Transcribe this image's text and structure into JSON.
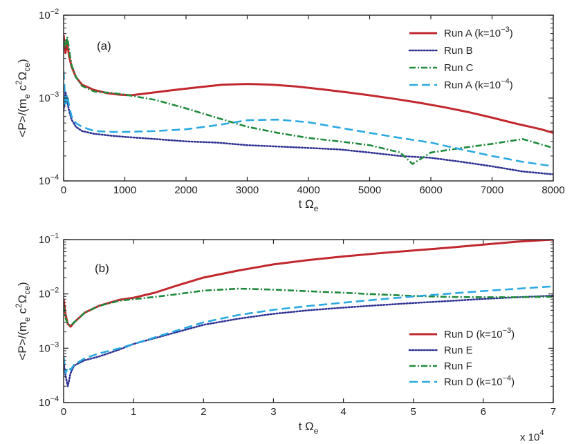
{
  "colors": {
    "red": "#c1272d",
    "navy": "#2e3192",
    "green": "#1e8a3a",
    "cyan": "#2aa9e0",
    "axis": "#231f20"
  },
  "chart_data": [
    {
      "type": "line",
      "panel_label": "(a)",
      "ylabel": "<P>/(m_e c^2 Ω_ce)",
      "xlabel": "t Ω_e",
      "xlim": [
        0,
        8000
      ],
      "ylim": [
        0.0001,
        0.01
      ],
      "yscale": "log",
      "x_ticks": [
        "0",
        "1000",
        "2000",
        "3000",
        "4000",
        "5000",
        "6000",
        "7000",
        "8000"
      ],
      "y_ticks": [
        {
          "base": "10",
          "exp": "−4"
        },
        {
          "base": "10",
          "exp": "−3"
        },
        {
          "base": "10",
          "exp": "−2"
        }
      ],
      "legend_position": "top-right",
      "series": [
        {
          "name": "Run A (k=10^-3)",
          "legend_base": "Run A (k=10",
          "legend_exp": "−3",
          "legend_tail": ")",
          "color": "#c1272d",
          "style": "solid",
          "x": [
            0,
            30,
            60,
            90,
            130,
            200,
            300,
            500,
            700,
            900,
            1100,
            1400,
            1800,
            2200,
            2600,
            3000,
            3400,
            3800,
            4200,
            4600,
            5000,
            5400,
            5800,
            6200,
            6600,
            7000,
            7400,
            7800,
            8000
          ],
          "y": [
            0.0058,
            0.0035,
            0.0045,
            0.0032,
            0.0024,
            0.0018,
            0.00145,
            0.00125,
            0.00115,
            0.0011,
            0.00108,
            0.00115,
            0.00125,
            0.00135,
            0.00145,
            0.00148,
            0.00145,
            0.00138,
            0.00128,
            0.00118,
            0.00108,
            0.00098,
            0.00088,
            0.00078,
            0.00068,
            0.00058,
            0.00049,
            0.00042,
            0.00038
          ]
        },
        {
          "name": "Run B",
          "color": "#2e3192",
          "style": "dotted",
          "x": [
            0,
            30,
            60,
            90,
            130,
            200,
            300,
            500,
            800,
            1000,
            1500,
            2000,
            2500,
            3000,
            3500,
            4000,
            4500,
            5000,
            5500,
            6000,
            6500,
            7000,
            7500,
            8000
          ],
          "y": [
            0.0007,
            0.0012,
            0.0009,
            0.0007,
            0.00055,
            0.00045,
            0.0004,
            0.00037,
            0.00035,
            0.00034,
            0.00032,
            0.0003,
            0.00029,
            0.00027,
            0.00026,
            0.00025,
            0.00024,
            0.00022,
            0.0002,
            0.00019,
            0.00017,
            0.00015,
            0.00013,
            0.00012
          ]
        },
        {
          "name": "Run C",
          "color": "#1e8a3a",
          "style": "dashdot",
          "x": [
            0,
            30,
            60,
            90,
            130,
            200,
            300,
            500,
            800,
            1000,
            1500,
            2000,
            2500,
            3000,
            3500,
            4000,
            4500,
            5000,
            5500,
            5700,
            6000,
            6500,
            7000,
            7500,
            8000
          ],
          "y": [
            0.005,
            0.004,
            0.0055,
            0.0038,
            0.0025,
            0.0018,
            0.0014,
            0.0012,
            0.00115,
            0.0011,
            0.00095,
            0.00075,
            0.00058,
            0.00045,
            0.00038,
            0.00033,
            0.0003,
            0.00027,
            0.00022,
            0.00016,
            0.00022,
            0.00025,
            0.00028,
            0.00032,
            0.00025
          ]
        },
        {
          "name": "Run A (k=10^-4)",
          "legend_base": "Run A (k=10",
          "legend_exp": "−4",
          "legend_tail": ")",
          "color": "#2aa9e0",
          "style": "dashed",
          "x": [
            0,
            30,
            60,
            90,
            130,
            200,
            300,
            500,
            800,
            1000,
            1500,
            2000,
            2500,
            3000,
            3500,
            4000,
            4500,
            5000,
            5500,
            6000,
            6500,
            7000,
            7500,
            8000
          ],
          "y": [
            0.0021,
            0.0008,
            0.0011,
            0.0008,
            0.0006,
            0.0005,
            0.00045,
            0.0004,
            0.00039,
            0.00039,
            0.0004,
            0.00042,
            0.00047,
            0.00054,
            0.00055,
            0.00051,
            0.00044,
            0.00038,
            0.00033,
            0.00029,
            0.00024,
            0.0002,
            0.00017,
            0.00015
          ]
        }
      ]
    },
    {
      "type": "line",
      "panel_label": "(b)",
      "ylabel": "<P>/(m_e c^2 Ω_ce)",
      "xlabel": "t Ω_e",
      "x_multiplier": "x 10^4",
      "x_multiplier_base": "x 10",
      "x_multiplier_exp": "4",
      "xlim": [
        0,
        7
      ],
      "ylim": [
        0.0001,
        0.1
      ],
      "yscale": "log",
      "x_ticks": [
        "0",
        "1",
        "2",
        "3",
        "4",
        "5",
        "6",
        "7"
      ],
      "y_ticks": [
        {
          "base": "10",
          "exp": "−4"
        },
        {
          "base": "10",
          "exp": "−3"
        },
        {
          "base": "10",
          "exp": "−2"
        },
        {
          "base": "10",
          "exp": "−1"
        }
      ],
      "legend_position": "bottom-right",
      "series": [
        {
          "name": "Run D (k=10^-3)",
          "legend_base": "Run D (k=10",
          "legend_exp": "−3",
          "legend_tail": ")",
          "color": "#c1272d",
          "style": "solid",
          "x": [
            0,
            0.03,
            0.06,
            0.1,
            0.15,
            0.3,
            0.5,
            0.8,
            1.0,
            1.3,
            1.6,
            2.0,
            2.5,
            3.0,
            3.5,
            4.0,
            4.5,
            5.0,
            5.5,
            6.0,
            6.5,
            7.0
          ],
          "y": [
            0.008,
            0.004,
            0.0028,
            0.0025,
            0.003,
            0.0045,
            0.006,
            0.0078,
            0.0085,
            0.0105,
            0.014,
            0.02,
            0.027,
            0.035,
            0.042,
            0.049,
            0.056,
            0.063,
            0.071,
            0.081,
            0.092,
            0.1
          ]
        },
        {
          "name": "Run E",
          "color": "#2e3192",
          "style": "dotted",
          "x": [
            0,
            0.03,
            0.06,
            0.1,
            0.15,
            0.3,
            0.5,
            0.8,
            1.0,
            1.5,
            2.0,
            2.5,
            3.0,
            3.5,
            4.0,
            4.5,
            5.0,
            5.5,
            6.0,
            6.5,
            7.0
          ],
          "y": [
            0.00055,
            0.0003,
            0.0002,
            0.00035,
            0.00048,
            0.0006,
            0.0007,
            0.00095,
            0.0012,
            0.0018,
            0.0027,
            0.0035,
            0.0043,
            0.005,
            0.0056,
            0.0062,
            0.0068,
            0.0074,
            0.0081,
            0.0087,
            0.0093
          ]
        },
        {
          "name": "Run F",
          "color": "#1e8a3a",
          "style": "dashdot",
          "x": [
            0,
            0.03,
            0.06,
            0.1,
            0.15,
            0.3,
            0.5,
            0.8,
            1.0,
            1.3,
            1.6,
            2.0,
            2.5,
            3.0,
            3.5,
            4.0,
            4.5,
            5.0,
            5.5,
            6.0,
            6.5,
            7.0
          ],
          "y": [
            0.006,
            0.0035,
            0.0028,
            0.0026,
            0.003,
            0.0045,
            0.006,
            0.0075,
            0.008,
            0.0088,
            0.0098,
            0.0115,
            0.0125,
            0.012,
            0.0112,
            0.0105,
            0.0098,
            0.0092,
            0.0088,
            0.0087,
            0.0087,
            0.0089
          ]
        },
        {
          "name": "Run D (k=10^-4)",
          "legend_base": "Run D (k=10",
          "legend_exp": "−4",
          "legend_tail": ")",
          "color": "#2aa9e0",
          "style": "dashed",
          "x": [
            0,
            0.03,
            0.06,
            0.1,
            0.15,
            0.3,
            0.5,
            0.8,
            1.0,
            1.5,
            2.0,
            2.5,
            3.0,
            3.5,
            4.0,
            4.5,
            5.0,
            5.5,
            6.0,
            6.5,
            7.0
          ],
          "y": [
            0.0007,
            0.00035,
            0.00045,
            0.0004,
            0.0005,
            0.00065,
            0.0008,
            0.001,
            0.0012,
            0.0019,
            0.003,
            0.0041,
            0.0051,
            0.006,
            0.0069,
            0.0079,
            0.009,
            0.0101,
            0.0113,
            0.0125,
            0.0138
          ]
        }
      ]
    }
  ]
}
